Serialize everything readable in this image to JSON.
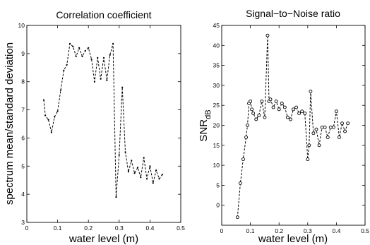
{
  "chart_data": [
    {
      "type": "line",
      "title": "Correlation coefficient",
      "xlabel": "water level (m)",
      "ylabel": "spectrum mean/standard deviation",
      "xlim": [
        0,
        0.5
      ],
      "ylim": [
        3,
        10
      ],
      "xticks": [
        "0",
        "0.1",
        "0.2",
        "0.3",
        "0.4",
        "0.5"
      ],
      "yticks": [
        "3",
        "4",
        "5",
        "6",
        "7",
        "8",
        "9",
        "10"
      ],
      "marker": "dot",
      "x": [
        0.055,
        0.06,
        0.07,
        0.08,
        0.09,
        0.1,
        0.11,
        0.12,
        0.13,
        0.14,
        0.15,
        0.16,
        0.17,
        0.18,
        0.19,
        0.2,
        0.21,
        0.22,
        0.23,
        0.24,
        0.25,
        0.26,
        0.27,
        0.28,
        0.29,
        0.3,
        0.31,
        0.32,
        0.33,
        0.34,
        0.35,
        0.36,
        0.37,
        0.38,
        0.39,
        0.4,
        0.41,
        0.42,
        0.43,
        0.44
      ],
      "y": [
        7.35,
        6.8,
        6.65,
        6.2,
        6.75,
        6.95,
        7.7,
        8.4,
        8.6,
        9.35,
        9.25,
        8.9,
        9.2,
        8.9,
        9.1,
        9.2,
        8.8,
        8.0,
        8.85,
        8.1,
        8.85,
        8.05,
        8.95,
        9.35,
        3.9,
        5.4,
        7.8,
        5.5,
        4.8,
        5.2,
        4.75,
        4.95,
        4.6,
        5.3,
        4.55,
        5.0,
        4.4,
        4.85,
        4.55,
        4.7
      ]
    },
    {
      "type": "line",
      "title": "Signal−to−Noise ratio",
      "xlabel": "water level (m)",
      "ylabel": "SNR",
      "ylabel_sub": "dB",
      "xlim": [
        0,
        0.5
      ],
      "ylim": [
        -5,
        45
      ],
      "xticks": [
        "0",
        "0.1",
        "0.2",
        "0.3",
        "0.4",
        "0.5"
      ],
      "yticks": [
        "0",
        "5",
        "10",
        "15",
        "20",
        "25",
        "30",
        "35",
        "40",
        "45"
      ],
      "marker": "circle",
      "x": [
        0.055,
        0.065,
        0.075,
        0.085,
        0.09,
        0.095,
        0.1,
        0.105,
        0.11,
        0.12,
        0.13,
        0.14,
        0.15,
        0.16,
        0.165,
        0.17,
        0.18,
        0.19,
        0.2,
        0.21,
        0.22,
        0.23,
        0.24,
        0.25,
        0.26,
        0.27,
        0.28,
        0.29,
        0.3,
        0.305,
        0.31,
        0.32,
        0.33,
        0.34,
        0.35,
        0.36,
        0.37,
        0.38,
        0.39,
        0.4,
        0.41,
        0.42,
        0.43,
        0.44
      ],
      "y": [
        -3,
        5.5,
        11.5,
        17,
        20,
        25.5,
        26,
        24,
        23,
        21.5,
        22.5,
        26,
        22,
        42.5,
        26,
        26.5,
        24.5,
        26,
        24,
        25.5,
        24.5,
        22,
        21.5,
        24,
        24.5,
        23,
        23.5,
        23,
        11.5,
        15,
        28.5,
        18,
        19,
        15,
        19.5,
        19.5,
        17,
        19.5,
        19.5,
        23.5,
        17,
        20.5,
        18.5,
        20.5
      ]
    }
  ]
}
